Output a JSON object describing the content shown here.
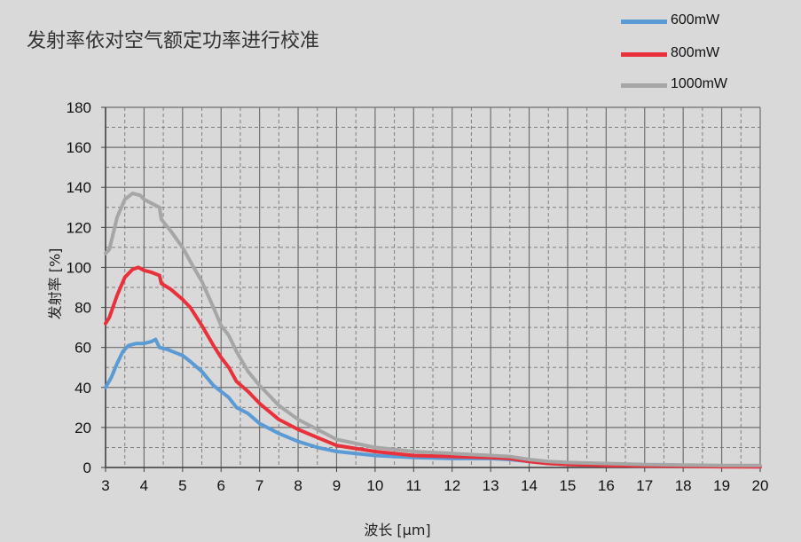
{
  "chart_data": {
    "type": "line",
    "title": "发射率依对空气额定功率进行校准",
    "xlabel": "波长 [µm]",
    "ylabel": "发射率 [%]",
    "xlim": [
      3,
      20
    ],
    "ylim": [
      0,
      180
    ],
    "x_ticks": [
      "3",
      "4",
      "5",
      "6",
      "7",
      "8",
      "9",
      "10",
      "11",
      "12",
      "13",
      "14",
      "15",
      "16",
      "17",
      "18",
      "19",
      "20"
    ],
    "y_ticks": [
      "0",
      "20",
      "40",
      "60",
      "80",
      "100",
      "120",
      "140",
      "160",
      "180"
    ],
    "grid": true,
    "legend_position": "top-right",
    "series": [
      {
        "name": "600mW",
        "color": "#5b9bd5",
        "points": [
          [
            3,
            40
          ],
          [
            3.15,
            45
          ],
          [
            3.3,
            52
          ],
          [
            3.45,
            58
          ],
          [
            3.6,
            61
          ],
          [
            3.8,
            62
          ],
          [
            4,
            62
          ],
          [
            4.2,
            63
          ],
          [
            4.3,
            64
          ],
          [
            4.4,
            60
          ],
          [
            4.6,
            59
          ],
          [
            4.8,
            57.5
          ],
          [
            5,
            56
          ],
          [
            5.2,
            53
          ],
          [
            5.5,
            48
          ],
          [
            5.8,
            41
          ],
          [
            6,
            38
          ],
          [
            6.2,
            35
          ],
          [
            6.4,
            30
          ],
          [
            6.7,
            27
          ],
          [
            7,
            22
          ],
          [
            7.5,
            17
          ],
          [
            8,
            13
          ],
          [
            8.5,
            10
          ],
          [
            9,
            8
          ],
          [
            10,
            6
          ],
          [
            11,
            5
          ],
          [
            12,
            4.5
          ],
          [
            13,
            4.5
          ],
          [
            13.5,
            4
          ],
          [
            14,
            3
          ],
          [
            14.5,
            2
          ],
          [
            15,
            1.5
          ],
          [
            16,
            1
          ],
          [
            17,
            0.8
          ],
          [
            18,
            0.6
          ],
          [
            19,
            0.5
          ],
          [
            20,
            0.4
          ]
        ]
      },
      {
        "name": "800mW",
        "color": "#e8313a",
        "points": [
          [
            3,
            72
          ],
          [
            3.1,
            75
          ],
          [
            3.3,
            86
          ],
          [
            3.5,
            95
          ],
          [
            3.7,
            99
          ],
          [
            3.85,
            100
          ],
          [
            4,
            98.5
          ],
          [
            4.2,
            97.5
          ],
          [
            4.4,
            96
          ],
          [
            4.45,
            92
          ],
          [
            4.7,
            89
          ],
          [
            5,
            84
          ],
          [
            5.2,
            80
          ],
          [
            5.5,
            71
          ],
          [
            5.8,
            61
          ],
          [
            6,
            55
          ],
          [
            6.2,
            50
          ],
          [
            6.4,
            43
          ],
          [
            6.7,
            38
          ],
          [
            7,
            32
          ],
          [
            7.5,
            24
          ],
          [
            8,
            19
          ],
          [
            8.5,
            15
          ],
          [
            9,
            11
          ],
          [
            10,
            8
          ],
          [
            11,
            6
          ],
          [
            12,
            5.5
          ],
          [
            13,
            5
          ],
          [
            13.5,
            4.5
          ],
          [
            14,
            3
          ],
          [
            14.5,
            2
          ],
          [
            15,
            1.5
          ],
          [
            16,
            1
          ],
          [
            17,
            0.8
          ],
          [
            18,
            0.6
          ],
          [
            19,
            0.4
          ],
          [
            20,
            0.3
          ]
        ]
      },
      {
        "name": "1000mW",
        "color": "#a6a6a6",
        "points": [
          [
            3,
            107
          ],
          [
            3.1,
            109
          ],
          [
            3.3,
            125
          ],
          [
            3.5,
            134
          ],
          [
            3.7,
            137
          ],
          [
            3.9,
            136
          ],
          [
            4,
            134
          ],
          [
            4.2,
            132
          ],
          [
            4.4,
            130
          ],
          [
            4.45,
            124
          ],
          [
            4.7,
            118
          ],
          [
            5,
            110
          ],
          [
            5.2,
            103
          ],
          [
            5.5,
            93
          ],
          [
            5.8,
            80
          ],
          [
            6,
            71
          ],
          [
            6.2,
            66
          ],
          [
            6.4,
            58
          ],
          [
            6.7,
            48
          ],
          [
            7,
            41
          ],
          [
            7.5,
            31
          ],
          [
            8,
            24
          ],
          [
            8.5,
            19
          ],
          [
            9,
            14
          ],
          [
            10,
            10
          ],
          [
            11,
            8
          ],
          [
            12,
            7
          ],
          [
            13,
            6
          ],
          [
            13.5,
            5.5
          ],
          [
            14,
            4
          ],
          [
            14.5,
            3
          ],
          [
            15,
            2.5
          ],
          [
            16,
            2
          ],
          [
            17,
            1.5
          ],
          [
            18,
            1.2
          ],
          [
            19,
            1
          ],
          [
            20,
            1
          ]
        ]
      }
    ]
  }
}
